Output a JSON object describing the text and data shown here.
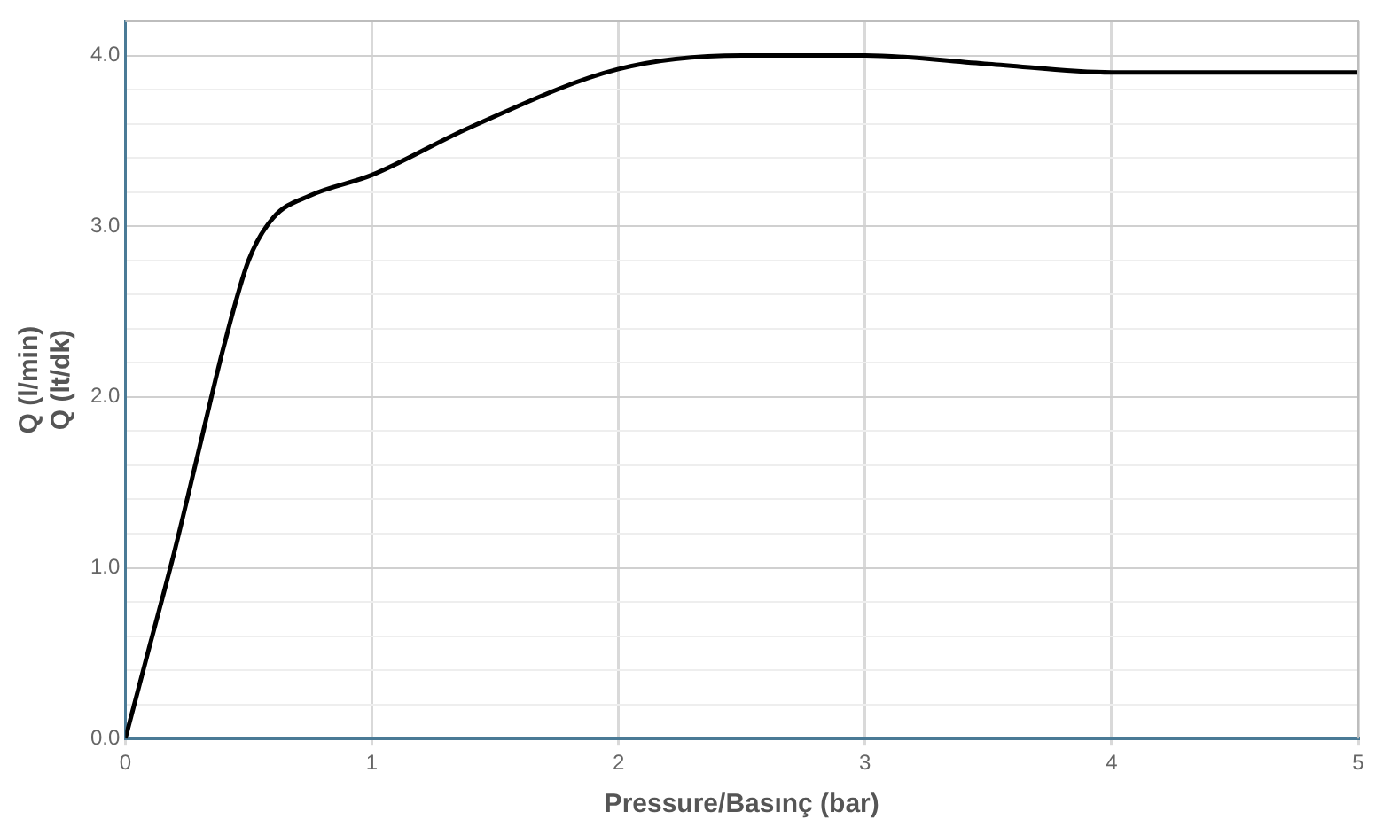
{
  "chart_data": {
    "type": "line",
    "xlabel": "Pressure/Basınç (bar)",
    "ylabel": "Q (l/min)\nQ (lt/dk)",
    "x": [
      0,
      0.1,
      0.2,
      0.3,
      0.4,
      0.5,
      0.6,
      0.75,
      1,
      1.4,
      2,
      2.5,
      3,
      3.5,
      4,
      4.5,
      5
    ],
    "series": [
      {
        "color": "#000000",
        "values": [
          0,
          0.55,
          1.1,
          1.7,
          2.3,
          2.8,
          3.05,
          3.18,
          3.3,
          3.58,
          3.92,
          4.0,
          4.0,
          3.95,
          3.9,
          3.9,
          3.9
        ]
      }
    ],
    "xlim": [
      0,
      5
    ],
    "xticks": [
      0,
      1,
      2,
      3,
      4,
      5
    ],
    "ylim": [
      0,
      4.2
    ],
    "yticks": [
      {
        "value": 0,
        "label": "0.0"
      },
      {
        "value": 0.2,
        "label": null
      },
      {
        "value": 0.4,
        "label": null
      },
      {
        "value": 0.6,
        "label": null
      },
      {
        "value": 0.8,
        "label": null
      },
      {
        "value": 1,
        "label": "1.0"
      },
      {
        "value": 1.2,
        "label": null
      },
      {
        "value": 1.4,
        "label": null
      },
      {
        "value": 1.6,
        "label": null
      },
      {
        "value": 1.8,
        "label": null
      },
      {
        "value": 2,
        "label": "2.0"
      },
      {
        "value": 2.2,
        "label": null
      },
      {
        "value": 2.4,
        "label": null
      },
      {
        "value": 2.6,
        "label": null
      },
      {
        "value": 2.8,
        "label": null
      },
      {
        "value": 3,
        "label": "3.0"
      },
      {
        "value": 3.2,
        "label": null
      },
      {
        "value": 3.4,
        "label": null
      },
      {
        "value": 3.6,
        "label": null
      },
      {
        "value": 3.8,
        "label": null
      },
      {
        "value": 4,
        "label": "4.0"
      },
      {
        "value": 4.2,
        "label": null
      }
    ],
    "grid": true,
    "marker": "none",
    "line_style": "solid"
  }
}
